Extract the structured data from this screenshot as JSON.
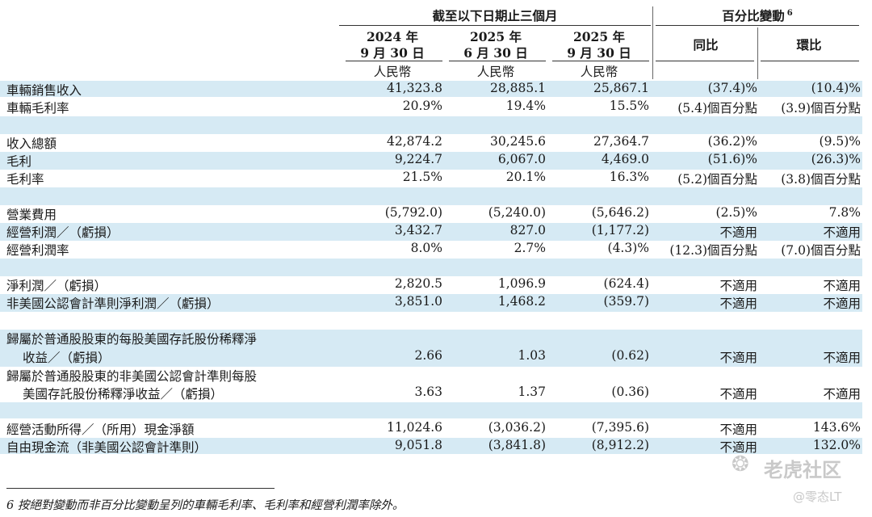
{
  "header": {
    "period_group": "截至以下日期止三個月",
    "change_group": "百分比變動",
    "change_note": "6",
    "columns": [
      {
        "year": "2024 年",
        "date": "9 月 30 日",
        "unit": "人民幣"
      },
      {
        "year": "2025 年",
        "date": "6 月 30 日",
        "unit": "人民幣"
      },
      {
        "year": "2025 年",
        "date": "9 月 30 日",
        "unit": "人民幣"
      }
    ],
    "yoy": "同比",
    "qoq": "環比"
  },
  "rows": [
    {
      "label": "車輛銷售收入",
      "v": [
        "41,323.8",
        "28,885.1",
        "25,867.1",
        "(37.4)%",
        "(10.4)%"
      ]
    },
    {
      "label": "車輛毛利率",
      "v": [
        "20.9%",
        "19.4%",
        "15.5%",
        "(5.4)個百分點",
        "(3.9)個百分點"
      ]
    },
    {
      "label": "收入總額",
      "v": [
        "42,874.2",
        "30,245.6",
        "27,364.7",
        "(36.2)%",
        "(9.5)%"
      ]
    },
    {
      "label": "毛利",
      "v": [
        "9,224.7",
        "6,067.0",
        "4,469.0",
        "(51.6)%",
        "(26.3)%"
      ]
    },
    {
      "label": "毛利率",
      "v": [
        "21.5%",
        "20.1%",
        "16.3%",
        "(5.2)個百分點",
        "(3.8)個百分點"
      ]
    },
    {
      "label": "營業費用",
      "v": [
        "(5,792.0)",
        "(5,240.0)",
        "(5,646.2)",
        "(2.5)%",
        "7.8%"
      ]
    },
    {
      "label": "經營利潤／（虧損）",
      "v": [
        "3,432.7",
        "827.0",
        "(1,177.2)",
        "不適用",
        "不適用"
      ]
    },
    {
      "label": "經營利潤率",
      "v": [
        "8.0%",
        "2.7%",
        "(4.3)%",
        "(12.3)個百分點",
        "(7.0)個百分點"
      ]
    },
    {
      "label": "淨利潤／（虧損）",
      "v": [
        "2,820.5",
        "1,096.9",
        "(624.4)",
        "不適用",
        "不適用"
      ]
    },
    {
      "label": "非美國公認會計準則淨利潤／（虧損）",
      "v": [
        "3,851.0",
        "1,468.2",
        "(359.7)",
        "不適用",
        "不適用"
      ]
    },
    {
      "label": "歸屬於普通股股東的每股美國存託股份稀釋淨",
      "label2": "收益／（虧損）",
      "v": [
        "2.66",
        "1.03",
        "(0.62)",
        "不適用",
        "不適用"
      ]
    },
    {
      "label": "歸屬於普通股股東的非美國公認會計準則每股",
      "label2": "美國存託股份稀釋淨收益／（虧損）",
      "v": [
        "3.63",
        "1.37",
        "(0.36)",
        "不適用",
        "不適用"
      ]
    },
    {
      "label": "經營活動所得／（所用）現金淨額",
      "v": [
        "11,024.6",
        "(3,036.2)",
        "(7,395.6)",
        "不適用",
        "143.6%"
      ]
    },
    {
      "label": "自由現金流（非美國公認會計準則）",
      "v": [
        "9,051.8",
        "(3,841.8)",
        "(8,912.2)",
        "不適用",
        "132.0%"
      ]
    }
  ],
  "footnote": "6 按絕對變動而非百分比變動呈列的車輛毛利率、毛利率和經營利潤率除外。",
  "watermark": {
    "brand": "老虎社区",
    "user": "@零态LT"
  }
}
